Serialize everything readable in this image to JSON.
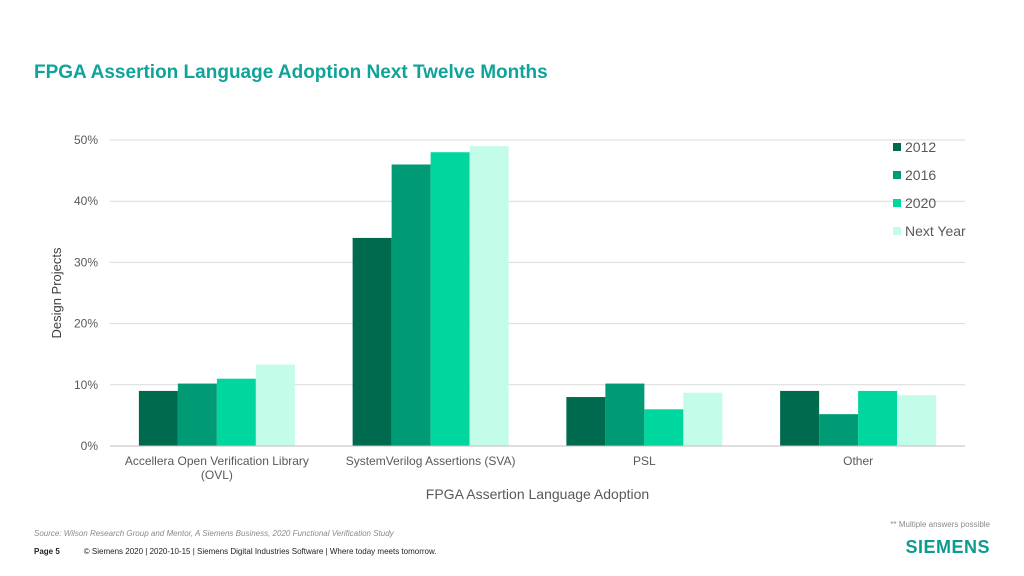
{
  "header": {
    "title": "FPGA Assertion Language Adoption Next Twelve Months"
  },
  "chart_data": {
    "type": "bar",
    "categories": [
      "Accellera Open Verification Library (OVL)",
      "SystemVerilog Assertions (SVA)",
      "PSL",
      "Other"
    ],
    "category_labels": [
      [
        "Accellera Open Verification Library",
        "(OVL)"
      ],
      [
        "SystemVerilog Assertions (SVA)"
      ],
      [
        "PSL"
      ],
      [
        "Other"
      ]
    ],
    "series": [
      {
        "name": "2012",
        "color": "#006a4e",
        "values": [
          9,
          34,
          8,
          9
        ]
      },
      {
        "name": "2016",
        "color": "#009a74",
        "values": [
          10.2,
          46,
          10.2,
          5.2
        ]
      },
      {
        "name": "2020",
        "color": "#00d79e",
        "values": [
          11,
          48,
          6,
          9
        ]
      },
      {
        "name": "Next Year",
        "color": "#c4fcea",
        "values": [
          13.3,
          49,
          8.7,
          8.3
        ]
      }
    ],
    "xlabel": "FPGA Assertion Language Adoption",
    "ylabel": "Design Projects",
    "ylim": [
      0,
      50
    ],
    "yticks": [
      0,
      10,
      20,
      30,
      40,
      50
    ],
    "ytick_labels": [
      "0%",
      "10%",
      "20%",
      "30%",
      "40%",
      "50%"
    ],
    "grid": true,
    "legend_position": "top-right"
  },
  "footnote": {
    "source": "Source:  Wilson Research Group and Mentor,  A Siemens Business, 2020 Functional Verification Study",
    "note": "** Multiple answers possible"
  },
  "footer": {
    "page": "Page 5",
    "copyright": "© Siemens 2020 | 2020-10-15 | Siemens Digital Industries Software | Where today meets tomorrow.",
    "logo": "SIEMENS"
  }
}
